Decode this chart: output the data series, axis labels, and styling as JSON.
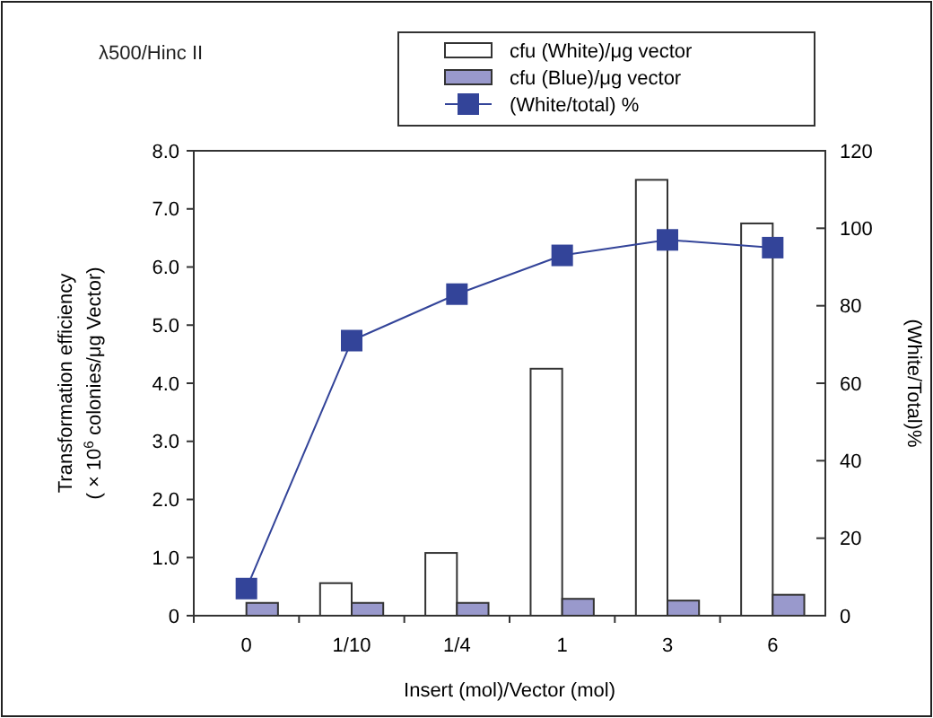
{
  "chart_data": {
    "type": "bar",
    "title": "λ500/Hinc II",
    "xlabel": "Insert (mol)/Vector (mol)",
    "ylabel": "Transformation efficiency\n( × 10$^{6}$ colonies/μg Vector)",
    "y2label": "(White/Total)%",
    "categories": [
      "0",
      "1/10",
      "1/4",
      "1",
      "3",
      "6"
    ],
    "series": [
      {
        "name": "cfu (White)/μg vector",
        "color": "#ffffff",
        "values": [
          0,
          0.56,
          1.08,
          4.25,
          7.5,
          6.75
        ]
      },
      {
        "name": "cfu (Blue)/μg vector",
        "color": "#9999cc",
        "values": [
          0.22,
          0.22,
          0.22,
          0.29,
          0.26,
          0.36
        ]
      },
      {
        "name": "(White/total) %",
        "type": "line",
        "axis": "y2",
        "color": "#334499",
        "marker": "square",
        "values": [
          7,
          71,
          83,
          93,
          97,
          95
        ]
      }
    ],
    "ylim": [
      0,
      8
    ],
    "yticks": [
      0,
      {
        "value": 1,
        "label": "1.0"
      },
      {
        "value": 2,
        "label": "2.0"
      },
      {
        "value": 3,
        "label": "3.0"
      },
      {
        "value": 4,
        "label": "4.0"
      },
      {
        "value": 5,
        "label": "5.0"
      },
      {
        "value": 6,
        "label": "6.0"
      },
      {
        "value": 7,
        "label": "7.0"
      },
      {
        "value": 8,
        "label": "8.0"
      }
    ],
    "y2lim": [
      0,
      120
    ],
    "y2ticks": [
      0,
      20,
      40,
      60,
      80,
      100,
      120
    ],
    "legend": "top right",
    "grid": false
  }
}
